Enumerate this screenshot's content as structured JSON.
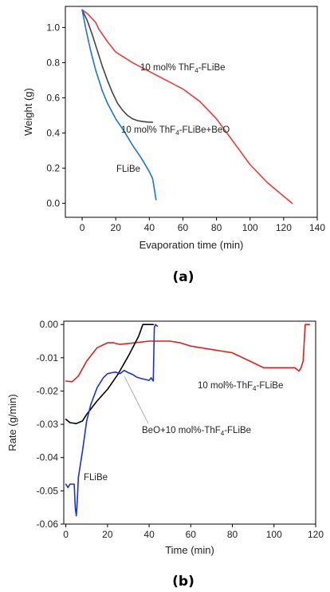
{
  "chart_data": [
    {
      "type": "line",
      "caption": "(a)",
      "xlabel": "Evaporation time (min)",
      "ylabel": "Weight (g)",
      "xlim": [
        -10,
        140
      ],
      "ylim": [
        -0.08,
        1.12
      ],
      "xticks": [
        0,
        20,
        40,
        60,
        80,
        100,
        120,
        140
      ],
      "xtick_labels": [
        "0",
        "20",
        "40",
        "60",
        "80",
        "100",
        "120",
        "140"
      ],
      "yticks": [
        0.0,
        0.2,
        0.4,
        0.6,
        0.8,
        1.0
      ],
      "ytick_labels": [
        "0.0",
        "0.2",
        "0.4",
        "0.6",
        "0.8",
        "1.0"
      ],
      "grid": false,
      "series": [
        {
          "color": "#ee3b3b",
          "x": [
            0,
            3,
            5,
            8,
            10,
            15,
            20,
            30,
            40,
            50,
            60,
            70,
            80,
            90,
            100,
            110,
            120,
            125
          ],
          "y": [
            1.1,
            1.08,
            1.06,
            1.03,
            0.99,
            0.92,
            0.86,
            0.8,
            0.75,
            0.7,
            0.65,
            0.58,
            0.48,
            0.35,
            0.22,
            0.12,
            0.04,
            0.0
          ]
        },
        {
          "color": "#444444",
          "x": [
            0,
            3,
            6,
            9,
            12,
            15,
            18,
            21,
            24,
            27,
            30,
            33,
            36,
            39,
            42
          ],
          "y": [
            1.1,
            1.04,
            0.96,
            0.87,
            0.78,
            0.7,
            0.63,
            0.57,
            0.53,
            0.5,
            0.48,
            0.47,
            0.465,
            0.462,
            0.461
          ]
        },
        {
          "color": "#1a74e0",
          "x": [
            0,
            2,
            5,
            8,
            10,
            12,
            15,
            20,
            25,
            30,
            35,
            40,
            42,
            44
          ],
          "y": [
            1.1,
            1.0,
            0.87,
            0.76,
            0.7,
            0.64,
            0.57,
            0.48,
            0.41,
            0.33,
            0.26,
            0.18,
            0.14,
            0.02
          ]
        }
      ],
      "annotations": [
        {
          "text": "10 mol% ThF",
          "sub": "4",
          "tail": "-FLiBe"
        },
        {
          "text": "10 mol% ThF",
          "sub": "4",
          "tail": "-FLiBe+BeO"
        },
        {
          "text": "FLiBe",
          "sub": "",
          "tail": ""
        }
      ]
    },
    {
      "type": "line",
      "caption": "(b)",
      "xlabel": "Time (min)",
      "ylabel": "Rate (g/min)",
      "xlim": [
        -1,
        120
      ],
      "ylim": [
        -0.06,
        0.001
      ],
      "xticks": [
        0,
        20,
        40,
        60,
        80,
        100,
        120
      ],
      "xtick_labels": [
        "0",
        "20",
        "40",
        "60",
        "80",
        "100",
        "120"
      ],
      "yticks": [
        0.0,
        -0.01,
        -0.02,
        -0.03,
        -0.04,
        -0.05,
        -0.06
      ],
      "ytick_labels": [
        "0.00",
        "-0.01",
        "-0.02",
        "-0.03",
        "-0.04",
        "-0.05",
        "-0.06"
      ],
      "grid": false,
      "series": [
        {
          "color": "#e81c1c",
          "x": [
            0,
            3,
            6,
            10,
            15,
            20,
            23,
            26,
            30,
            40,
            50,
            55,
            60,
            65,
            70,
            75,
            80,
            90,
            95,
            100,
            110,
            112,
            113,
            114,
            115,
            117
          ],
          "y": [
            -0.017,
            -0.0172,
            -0.0155,
            -0.011,
            -0.007,
            -0.0055,
            -0.0055,
            -0.006,
            -0.0057,
            -0.005,
            -0.005,
            -0.0055,
            -0.0065,
            -0.007,
            -0.0075,
            -0.008,
            -0.0085,
            -0.0115,
            -0.013,
            -0.013,
            -0.013,
            -0.014,
            -0.013,
            -0.011,
            0.0,
            0.0
          ]
        },
        {
          "color": "#000000",
          "x": [
            0,
            2,
            5,
            8,
            10,
            15,
            20,
            25,
            30,
            35,
            37,
            40,
            42
          ],
          "y": [
            -0.0285,
            -0.0295,
            -0.0298,
            -0.029,
            -0.027,
            -0.023,
            -0.0195,
            -0.015,
            -0.0095,
            -0.0035,
            0.0,
            0.0,
            0.0
          ]
        },
        {
          "color": "#1a2fe0",
          "x": [
            0,
            1,
            2,
            3,
            4,
            4.5,
            5,
            5.5,
            6,
            8,
            10,
            12,
            15,
            18,
            20,
            22,
            24,
            26,
            28,
            30,
            32,
            34,
            36,
            38,
            40,
            41,
            42,
            42.5,
            43,
            44
          ],
          "y": [
            -0.048,
            -0.049,
            -0.048,
            -0.048,
            -0.048,
            -0.055,
            -0.0575,
            -0.053,
            -0.046,
            -0.038,
            -0.029,
            -0.024,
            -0.019,
            -0.016,
            -0.0148,
            -0.0145,
            -0.0143,
            -0.0148,
            -0.0138,
            -0.0145,
            -0.015,
            -0.0158,
            -0.0162,
            -0.0165,
            -0.0168,
            -0.016,
            -0.017,
            -0.001,
            0.0,
            -0.0005
          ]
        }
      ],
      "annotations": [
        {
          "text": "10 mol%-ThF",
          "sub": "4",
          "tail": "-FLiBe"
        },
        {
          "text": "BeO+10 mol%-ThF",
          "sub": "4",
          "tail": "-FLiBe"
        },
        {
          "text": "FLiBe",
          "sub": "",
          "tail": ""
        }
      ]
    }
  ]
}
